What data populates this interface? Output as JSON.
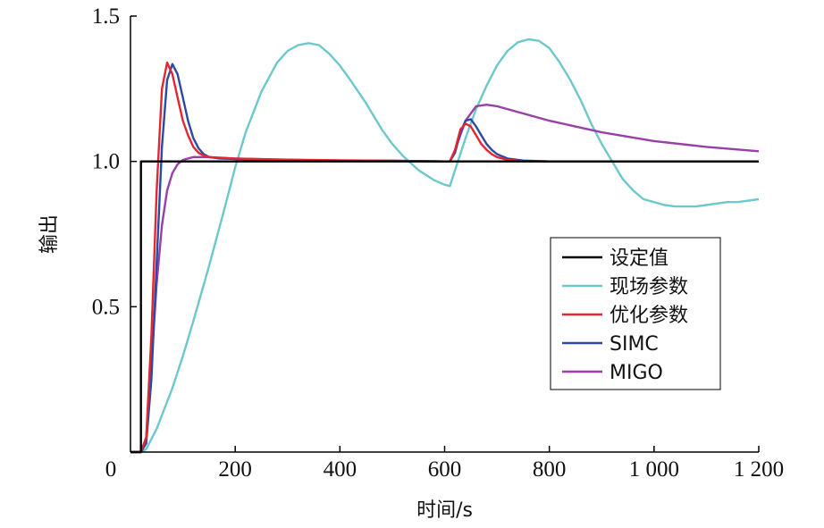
{
  "chart_data": {
    "type": "line",
    "xlabel": "时间/s",
    "ylabel": "输出",
    "xlim": [
      0,
      1200
    ],
    "ylim": [
      0,
      1.5
    ],
    "xticks": [
      {
        "value": 0,
        "label": "0"
      },
      {
        "value": 200,
        "label": "200"
      },
      {
        "value": 400,
        "label": "400"
      },
      {
        "value": 600,
        "label": "600"
      },
      {
        "value": 800,
        "label": "800"
      },
      {
        "value": 1000,
        "label": "1 000"
      },
      {
        "value": 1200,
        "label": "1 200"
      }
    ],
    "yticks": [
      {
        "value": 0.5,
        "label": "0.5"
      },
      {
        "value": 1.0,
        "label": "1.0"
      },
      {
        "value": 1.5,
        "label": "1.5"
      }
    ],
    "grid": false,
    "legend_position": "right",
    "series": [
      {
        "name": "设定值",
        "color": "#000000",
        "x": [
          0,
          20,
          20.01,
          1200
        ],
        "y": [
          0,
          0,
          1.0,
          1.0
        ]
      },
      {
        "name": "现场参数",
        "color": "#6cc8cb",
        "x": [
          0,
          20,
          30,
          50,
          80,
          100,
          120,
          150,
          180,
          200,
          220,
          250,
          280,
          300,
          320,
          340,
          360,
          380,
          400,
          420,
          450,
          480,
          500,
          520,
          550,
          580,
          600,
          610,
          620,
          640,
          660,
          680,
          700,
          720,
          740,
          760,
          780,
          800,
          820,
          840,
          860,
          880,
          900,
          920,
          940,
          960,
          980,
          1000,
          1020,
          1040,
          1060,
          1080,
          1100,
          1120,
          1140,
          1160,
          1180,
          1200
        ],
        "y": [
          0,
          0,
          0.01,
          0.08,
          0.22,
          0.33,
          0.45,
          0.64,
          0.84,
          0.98,
          1.1,
          1.24,
          1.34,
          1.38,
          1.4,
          1.407,
          1.4,
          1.37,
          1.33,
          1.28,
          1.2,
          1.11,
          1.06,
          1.02,
          0.97,
          0.935,
          0.92,
          0.915,
          0.97,
          1.08,
          1.18,
          1.26,
          1.33,
          1.38,
          1.41,
          1.42,
          1.415,
          1.39,
          1.34,
          1.28,
          1.21,
          1.13,
          1.06,
          1.0,
          0.94,
          0.9,
          0.87,
          0.86,
          0.85,
          0.845,
          0.845,
          0.845,
          0.85,
          0.855,
          0.86,
          0.86,
          0.865,
          0.87
        ]
      },
      {
        "name": "优化参数",
        "color": "#e2272e",
        "x": [
          0,
          20,
          30,
          40,
          50,
          60,
          70,
          80,
          90,
          100,
          110,
          120,
          130,
          140,
          150,
          170,
          200,
          250,
          300,
          400,
          500,
          600,
          610,
          620,
          630,
          640,
          650,
          660,
          670,
          680,
          690,
          700,
          720,
          750,
          800,
          1200
        ],
        "y": [
          0,
          0,
          0.05,
          0.4,
          0.9,
          1.25,
          1.34,
          1.3,
          1.22,
          1.14,
          1.09,
          1.05,
          1.03,
          1.02,
          1.015,
          1.012,
          1.01,
          1.008,
          1.006,
          1.004,
          1.002,
          1.0,
          1.0,
          1.04,
          1.11,
          1.13,
          1.12,
          1.09,
          1.06,
          1.04,
          1.025,
          1.015,
          1.005,
          1.001,
          1.0,
          1.0
        ]
      },
      {
        "name": "SIMC",
        "color": "#2c4aa3",
        "x": [
          0,
          20,
          30,
          40,
          50,
          60,
          70,
          80,
          90,
          100,
          110,
          120,
          130,
          140,
          150,
          170,
          200,
          250,
          300,
          400,
          500,
          600,
          610,
          620,
          630,
          640,
          650,
          660,
          670,
          680,
          690,
          700,
          720,
          750,
          800,
          1200
        ],
        "y": [
          0,
          0,
          0.03,
          0.25,
          0.65,
          1.05,
          1.28,
          1.335,
          1.3,
          1.22,
          1.14,
          1.08,
          1.045,
          1.025,
          1.015,
          1.01,
          1.008,
          1.006,
          1.005,
          1.003,
          1.002,
          1.0,
          1.0,
          1.03,
          1.1,
          1.14,
          1.145,
          1.12,
          1.09,
          1.06,
          1.04,
          1.025,
          1.01,
          1.003,
          1.0,
          1.0
        ]
      },
      {
        "name": "MIGO",
        "color": "#993fa8",
        "x": [
          0,
          20,
          30,
          40,
          50,
          60,
          70,
          80,
          90,
          100,
          120,
          150,
          200,
          300,
          400,
          500,
          600,
          610,
          620,
          640,
          660,
          680,
          700,
          750,
          800,
          900,
          1000,
          1100,
          1200
        ],
        "y": [
          0,
          0,
          0.05,
          0.3,
          0.58,
          0.78,
          0.9,
          0.96,
          0.99,
          1.005,
          1.015,
          1.015,
          1.01,
          1.005,
          1.003,
          1.002,
          1.0,
          1.0,
          1.04,
          1.14,
          1.19,
          1.195,
          1.19,
          1.165,
          1.14,
          1.1,
          1.07,
          1.05,
          1.035
        ]
      }
    ]
  }
}
